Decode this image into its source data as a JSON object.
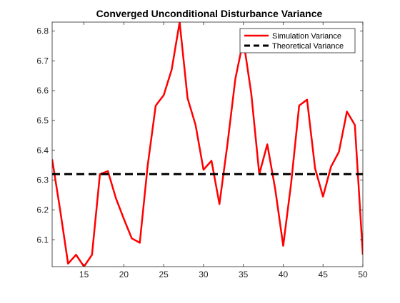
{
  "chart_data": {
    "type": "line",
    "title": "Converged  Unconditional  Disturbance  Variance",
    "xlabel": "",
    "ylabel": "",
    "xlim": [
      11,
      50
    ],
    "ylim": [
      6.01,
      6.83
    ],
    "xticks": [
      15,
      20,
      25,
      30,
      35,
      40,
      45,
      50
    ],
    "yticks": [
      6.1,
      6.2,
      6.3,
      6.4,
      6.5,
      6.6,
      6.7,
      6.8
    ],
    "grid": false,
    "legend_position": "top-right",
    "series": [
      {
        "name": "Simulation Variance",
        "color": "#ff0000",
        "style": "solid",
        "x": [
          11,
          12,
          13,
          14,
          15,
          16,
          17,
          18,
          19,
          20,
          21,
          22,
          23,
          24,
          25,
          26,
          27,
          28,
          29,
          30,
          31,
          32,
          33,
          34,
          35,
          36,
          37,
          38,
          39,
          40,
          41,
          42,
          43,
          44,
          45,
          46,
          47,
          48,
          49,
          50
        ],
        "y": [
          6.37,
          6.2,
          6.02,
          6.05,
          6.01,
          6.05,
          6.32,
          6.33,
          6.24,
          6.17,
          6.105,
          6.09,
          6.35,
          6.55,
          6.585,
          6.67,
          6.83,
          6.575,
          6.485,
          6.335,
          6.365,
          6.22,
          6.42,
          6.64,
          6.77,
          6.59,
          6.32,
          6.42,
          6.27,
          6.08,
          6.29,
          6.55,
          6.57,
          6.34,
          6.245,
          6.345,
          6.395,
          6.53,
          6.485,
          6.05
        ]
      },
      {
        "name": "Theoretical Variance",
        "color": "#000000",
        "style": "dashed",
        "x": [
          11,
          50
        ],
        "y": [
          6.32,
          6.32
        ]
      }
    ]
  }
}
